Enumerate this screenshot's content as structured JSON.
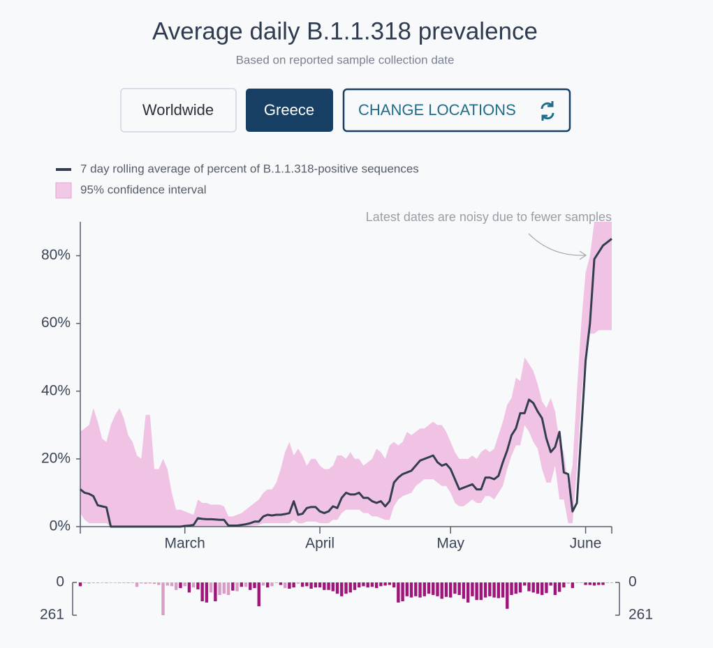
{
  "buttons": [
    "Worldwide",
    "Greece",
    "CHANGE LOCATIONS"
  ],
  "chart_data": [
    {
      "type": "line",
      "title": "Average daily B.1.1.318 prevalence",
      "subtitle": "Based on reported sample collection date",
      "annotation": "Latest dates are noisy due to fewer samples",
      "categories": [
        null,
        null,
        null,
        null,
        null,
        null,
        null,
        null,
        null,
        null,
        null,
        null,
        null,
        null,
        null,
        null,
        null,
        null,
        null,
        null,
        null,
        null,
        null,
        null,
        "March",
        null,
        null,
        null,
        null,
        null,
        null,
        null,
        null,
        null,
        null,
        null,
        null,
        null,
        null,
        null,
        null,
        null,
        null,
        null,
        null,
        null,
        null,
        null,
        null,
        null,
        null,
        null,
        null,
        null,
        null,
        "April",
        null,
        null,
        null,
        null,
        null,
        null,
        null,
        null,
        null,
        null,
        null,
        null,
        null,
        null,
        null,
        null,
        null,
        null,
        null,
        null,
        null,
        null,
        null,
        null,
        null,
        null,
        null,
        null,
        null,
        "May",
        null,
        null,
        null,
        null,
        null,
        null,
        null,
        null,
        null,
        null,
        null,
        null,
        null,
        null,
        null,
        null,
        null,
        null,
        null,
        null,
        null,
        null,
        null,
        null,
        null,
        null,
        null,
        null,
        null,
        null,
        "June",
        null,
        null,
        null,
        null,
        null,
        null
      ],
      "ylim": [
        0,
        90
      ],
      "yticks": [
        {
          "value": 0,
          "label": "0%"
        },
        {
          "value": 20,
          "label": "20%"
        },
        {
          "value": 40,
          "label": "40%"
        },
        {
          "value": 60,
          "label": "60%"
        },
        {
          "value": 80,
          "label": "80%"
        }
      ],
      "series": [
        {
          "name": "7 day rolling average of percent of B.1.1.318-positive sequences",
          "color": "#333d50",
          "values": [
            11,
            10,
            9.7,
            9,
            6.3,
            6,
            5.7,
            0,
            0,
            0,
            0,
            0,
            0,
            0,
            0,
            0,
            0,
            0,
            0,
            0,
            0,
            0,
            0,
            0,
            0.2,
            0.3,
            0.5,
            2.5,
            2.3,
            2.2,
            2.2,
            2.1,
            2,
            2,
            0.3,
            0.3,
            0.3,
            0.5,
            0.7,
            1,
            1.5,
            1.5,
            3,
            3.5,
            3.3,
            3.5,
            3.5,
            3.7,
            4,
            7.5,
            3.5,
            3.8,
            5.5,
            5.8,
            5.8,
            4.5,
            4,
            4.5,
            6,
            5.5,
            8.5,
            10,
            9.5,
            9.5,
            10,
            8.5,
            8.5,
            7.5,
            7,
            7.5,
            6,
            7.5,
            13,
            14.5,
            15.5,
            16,
            16.5,
            18,
            19.5,
            20,
            20.5,
            21,
            19,
            18,
            18.5,
            17,
            14,
            11,
            11.5,
            12,
            12.5,
            11,
            11,
            14.5,
            14.5,
            14,
            15,
            19,
            22.5,
            27,
            29,
            33.5,
            33.5,
            37.5,
            36.5,
            34,
            32,
            26,
            22,
            23.5,
            28,
            16,
            15.5,
            4.5,
            7,
            28,
            49,
            60,
            79,
            81,
            83,
            84,
            85
          ]
        },
        {
          "name": "95% confidence interval",
          "color": "#f0c3e4",
          "upper": [
            28,
            29,
            30,
            35,
            31,
            26,
            25,
            30,
            33,
            35,
            32,
            27,
            25,
            21,
            20,
            33,
            33,
            17,
            17,
            20,
            17,
            10,
            5,
            5,
            4.5,
            4,
            3.5,
            8,
            7,
            7,
            6.5,
            6.5,
            6.5,
            6,
            3,
            3,
            3.5,
            4,
            5,
            6,
            7,
            8,
            10,
            11,
            11,
            13,
            17,
            22,
            25,
            21,
            23,
            21,
            18,
            20,
            20,
            18,
            17,
            17,
            18,
            21,
            21,
            20,
            22,
            20,
            20,
            18,
            19,
            20,
            23,
            22,
            20,
            24,
            25,
            24,
            25,
            28,
            27,
            28,
            29,
            29,
            30,
            31,
            30,
            30,
            28,
            25,
            22,
            20,
            20,
            20,
            21,
            20,
            22,
            23,
            22,
            23,
            27,
            31,
            36,
            38,
            44,
            43,
            50,
            48,
            46,
            42,
            37,
            35,
            38,
            34,
            25,
            22,
            12,
            18,
            40,
            60,
            75,
            80,
            90,
            90,
            90,
            90,
            90
          ],
          "lower": [
            4,
            2,
            1,
            1,
            1,
            1,
            1,
            0,
            0,
            0,
            0,
            0,
            0,
            0,
            0,
            0,
            0,
            0,
            0,
            0,
            0,
            0,
            0,
            0,
            0,
            0,
            0,
            0,
            0,
            0,
            0,
            0,
            0,
            0,
            0,
            0,
            0,
            0,
            0,
            0.2,
            0.3,
            0.5,
            1,
            1,
            1,
            1,
            1,
            1,
            1,
            2,
            1,
            1,
            1.5,
            1.5,
            1.5,
            1,
            1,
            1,
            2,
            2,
            4,
            5,
            5,
            5,
            5,
            4,
            4,
            3,
            3,
            2.5,
            2,
            2,
            6,
            8,
            9,
            9.5,
            10,
            12,
            13,
            14,
            14,
            14,
            13,
            12,
            12,
            10,
            7,
            6,
            6,
            7,
            8,
            7,
            7,
            9,
            9,
            8,
            10,
            12,
            17,
            21,
            24,
            24,
            30,
            28,
            25,
            23,
            17,
            13,
            13,
            18,
            8,
            8,
            1,
            1,
            17,
            38,
            52,
            57,
            57,
            58,
            58,
            58,
            58
          ]
        }
      ]
    },
    {
      "type": "bar",
      "ylim": [
        0,
        261
      ],
      "yticks": [
        0,
        261
      ],
      "series": [
        {
          "color": "#d99cc4",
          "values": [
            null,
            5,
            8,
            5,
            6,
            4,
            6,
            4,
            4,
            5,
            5,
            6,
            5,
            35,
            8,
            10,
            8,
            12,
            20,
            261,
            25,
            30,
            60,
            null,
            30,
            null,
            40,
            null,
            null,
            null,
            80,
            null,
            100,
            90,
            100,
            null,
            70,
            null,
            35,
            null,
            null,
            null,
            25,
            null,
            30,
            5,
            null,
            45,
            null,
            null,
            10,
            null,
            null,
            null,
            null,
            null,
            null,
            null,
            null,
            null,
            null,
            null,
            null,
            null,
            null,
            null,
            null,
            null,
            null,
            null,
            null,
            null,
            null,
            null,
            null,
            null,
            null,
            null,
            null,
            null,
            null,
            null,
            null,
            null,
            null,
            null,
            null,
            null,
            null,
            null,
            null,
            null,
            null,
            null,
            null,
            null,
            null,
            null,
            null,
            null,
            null,
            null,
            null,
            null,
            null,
            null,
            null,
            null,
            null,
            null,
            null,
            null,
            10,
            null,
            5,
            5,
            null,
            null,
            null,
            null,
            null,
            5,
            5
          ]
        },
        {
          "color": "#a0157a",
          "values": [
            30,
            null,
            null,
            null,
            null,
            null,
            null,
            null,
            null,
            null,
            null,
            null,
            null,
            null,
            null,
            null,
            null,
            null,
            null,
            null,
            null,
            null,
            null,
            45,
            null,
            80,
            null,
            55,
            150,
            160,
            null,
            150,
            null,
            null,
            null,
            65,
            null,
            35,
            null,
            60,
            45,
            190,
            null,
            40,
            null,
            null,
            20,
            null,
            50,
            40,
            null,
            35,
            30,
            50,
            40,
            40,
            60,
            60,
            70,
            90,
            110,
            90,
            80,
            60,
            40,
            30,
            40,
            35,
            45,
            30,
            25,
            20,
            40,
            160,
            150,
            110,
            120,
            110,
            120,
            110,
            90,
            100,
            110,
            130,
            115,
            120,
            90,
            100,
            130,
            160,
            110,
            140,
            140,
            120,
            110,
            120,
            125,
            120,
            210,
            100,
            90,
            80,
            25,
            70,
            80,
            90,
            100,
            85,
            25,
            100,
            75,
            40,
            null,
            45,
            null,
            null,
            20,
            20,
            25,
            20,
            20,
            null,
            null
          ]
        }
      ]
    }
  ]
}
